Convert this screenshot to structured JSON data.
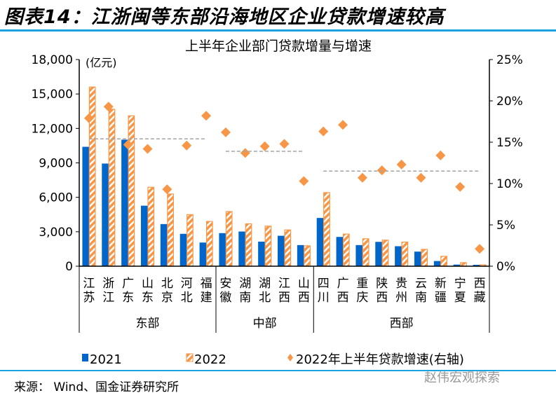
{
  "figure_title": "图表14：江浙闽等东部沿海地区企业贷款增速较高",
  "source": "来源：  Wind、国金证券研究所",
  "watermark": "赵伟宏观探索",
  "colors": {
    "bar2021": "#0066CC",
    "bar2022": "#F79646",
    "rule": "#1AA3E0",
    "avg_line": "#A6A6A6"
  },
  "chart_data": {
    "type": "bar",
    "title": "上半年企业部门贷款增量与增速",
    "ylabel": "(亿元)",
    "ylim": [
      0,
      18000
    ],
    "y_ticks": [
      "0",
      "3,000",
      "6,000",
      "9,000",
      "12,000",
      "15,000",
      "18,000"
    ],
    "y2lim": [
      0,
      25
    ],
    "y2_ticks": [
      "0%",
      "5%",
      "10%",
      "15%",
      "20%",
      "25%"
    ],
    "categories": [
      "江苏",
      "浙江",
      "广东",
      "山东",
      "北京",
      "河北",
      "福建",
      "安徽",
      "湖南",
      "湖北",
      "江西",
      "山西",
      "四川",
      "广西",
      "重庆",
      "陕西",
      "贵州",
      "云南",
      "新疆",
      "宁夏",
      "西藏"
    ],
    "groups": [
      {
        "name": "东部",
        "count": 7,
        "avg_growth": 15.4
      },
      {
        "name": "中部",
        "count": 5,
        "avg_growth": 13.9
      },
      {
        "name": "西部",
        "count": 9,
        "avg_growth": 11.5
      }
    ],
    "series": [
      {
        "name": "2021",
        "type": "bar",
        "axis": "left",
        "values": [
          10400,
          8940,
          11020,
          5270,
          3670,
          2820,
          2060,
          2880,
          3020,
          2140,
          2650,
          1840,
          4200,
          2550,
          1840,
          2120,
          1740,
          1270,
          450,
          140,
          120
        ]
      },
      {
        "name": "2022",
        "type": "bar",
        "axis": "left",
        "pattern": "hatched",
        "values": [
          15610,
          13670,
          13100,
          6880,
          6290,
          4490,
          3900,
          4760,
          3690,
          3490,
          3160,
          1780,
          6410,
          2800,
          2390,
          2270,
          2100,
          1470,
          860,
          310,
          120
        ]
      },
      {
        "name": "2022年上半年贷款增速(右轴)",
        "type": "scatter",
        "axis": "right",
        "unit": "%",
        "values": [
          17.9,
          19.3,
          14.7,
          14.2,
          9.3,
          14.6,
          18.2,
          16.2,
          13.7,
          14.5,
          14.8,
          10.3,
          16.3,
          17.1,
          10.7,
          11.6,
          12.3,
          10.7,
          13.4,
          9.6,
          2.1
        ]
      }
    ],
    "legend": "bottom",
    "grid": false
  }
}
